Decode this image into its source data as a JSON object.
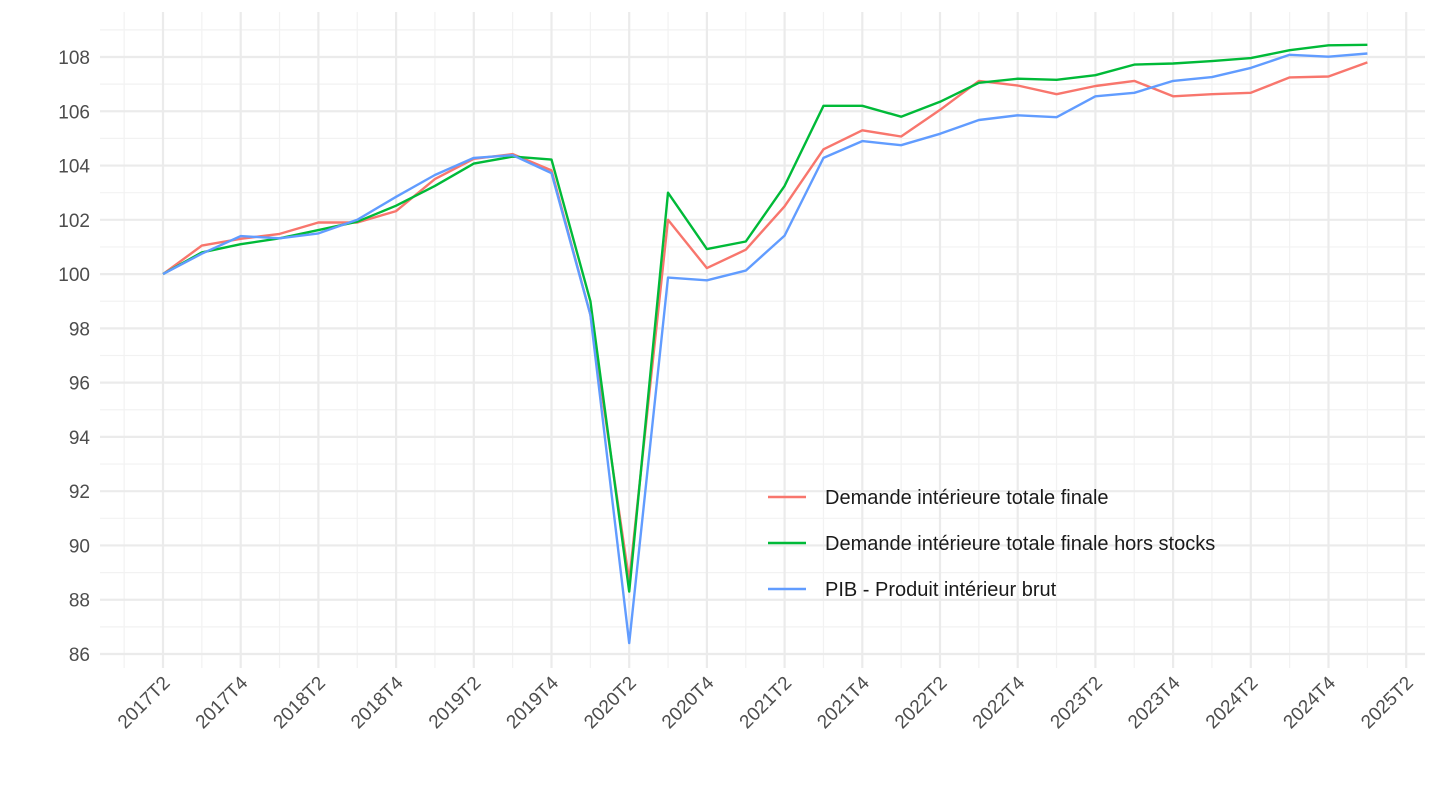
{
  "chart_data": {
    "type": "line",
    "title": "",
    "xlabel": "",
    "ylabel": "",
    "x": [
      "2017T2",
      "2017T3",
      "2017T4",
      "2018T1",
      "2018T2",
      "2018T3",
      "2018T4",
      "2019T1",
      "2019T2",
      "2019T3",
      "2019T4",
      "2020T1",
      "2020T2",
      "2020T3",
      "2020T4",
      "2021T1",
      "2021T2",
      "2021T3",
      "2021T4",
      "2022T1",
      "2022T2",
      "2022T3",
      "2022T4",
      "2023T1",
      "2023T2",
      "2023T3",
      "2023T4",
      "2024T1",
      "2024T2",
      "2024T3",
      "2024T4",
      "2025T1"
    ],
    "x_ticks": [
      "2017T2",
      "2017T4",
      "2018T2",
      "2018T4",
      "2019T2",
      "2019T4",
      "2020T2",
      "2020T4",
      "2021T2",
      "2021T4",
      "2022T2",
      "2022T4",
      "2023T2",
      "2023T4",
      "2024T2",
      "2024T4",
      "2025T2"
    ],
    "y_ticks": [
      86,
      88,
      90,
      92,
      94,
      96,
      98,
      100,
      102,
      104,
      106,
      108
    ],
    "ylim": [
      85.3,
      109.0
    ],
    "grid": true,
    "legend_position": "bottom-right inside",
    "series": [
      {
        "name": "Demande intérieure totale finale",
        "color": "#F8766D",
        "values": [
          100.0,
          101.05,
          101.3,
          101.48,
          101.9,
          101.9,
          102.32,
          103.5,
          104.25,
          104.42,
          103.82,
          98.5,
          88.7,
          102.0,
          100.22,
          100.9,
          102.5,
          104.6,
          105.3,
          105.07,
          106.05,
          107.12,
          106.95,
          106.63,
          106.93,
          107.12,
          106.55,
          106.63,
          106.68,
          107.25,
          107.28,
          107.8
        ]
      },
      {
        "name": "Demande intérieure totale finale hors stocks",
        "color": "#00BA38",
        "values": [
          100.0,
          100.8,
          101.1,
          101.32,
          101.62,
          101.93,
          102.52,
          103.25,
          104.07,
          104.33,
          104.22,
          99.0,
          88.3,
          103.0,
          100.92,
          101.2,
          103.25,
          106.2,
          106.2,
          105.8,
          106.35,
          107.05,
          107.2,
          107.16,
          107.33,
          107.72,
          107.76,
          107.85,
          107.96,
          108.25,
          108.43,
          108.45
        ]
      },
      {
        "name": "PIB - Produit intérieur brut",
        "color": "#619CFF",
        "values": [
          100.0,
          100.75,
          101.4,
          101.32,
          101.5,
          102.0,
          102.85,
          103.65,
          104.28,
          104.38,
          103.72,
          98.5,
          86.4,
          99.87,
          99.77,
          100.13,
          101.42,
          104.28,
          104.9,
          104.75,
          105.17,
          105.68,
          105.85,
          105.78,
          106.55,
          106.68,
          107.12,
          107.26,
          107.6,
          108.08,
          108.01,
          108.13
        ]
      }
    ]
  }
}
